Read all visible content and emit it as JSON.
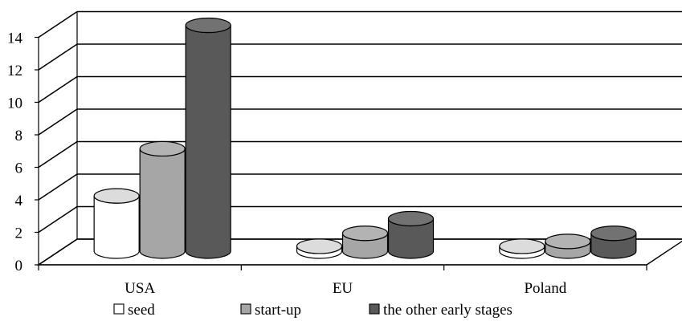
{
  "chart_data": {
    "type": "bar",
    "style": "3d-cylinder",
    "categories": [
      "USA",
      "EU",
      "Poland"
    ],
    "series": [
      {
        "name": "seed",
        "values": [
          3.4,
          0.3,
          0.3
        ],
        "color": "#ffffff"
      },
      {
        "name": "start-up",
        "values": [
          6.3,
          1.1,
          0.6
        ],
        "color": "#a6a6a6"
      },
      {
        "name": "the other early stages",
        "values": [
          13.9,
          2.0,
          1.1
        ],
        "color": "#595959"
      }
    ],
    "y_ticks": [
      "0",
      "2",
      "4",
      "6",
      "8",
      "10",
      "12",
      "14"
    ],
    "ylim": [
      0,
      14
    ],
    "grid": true,
    "legend_position": "bottom"
  }
}
